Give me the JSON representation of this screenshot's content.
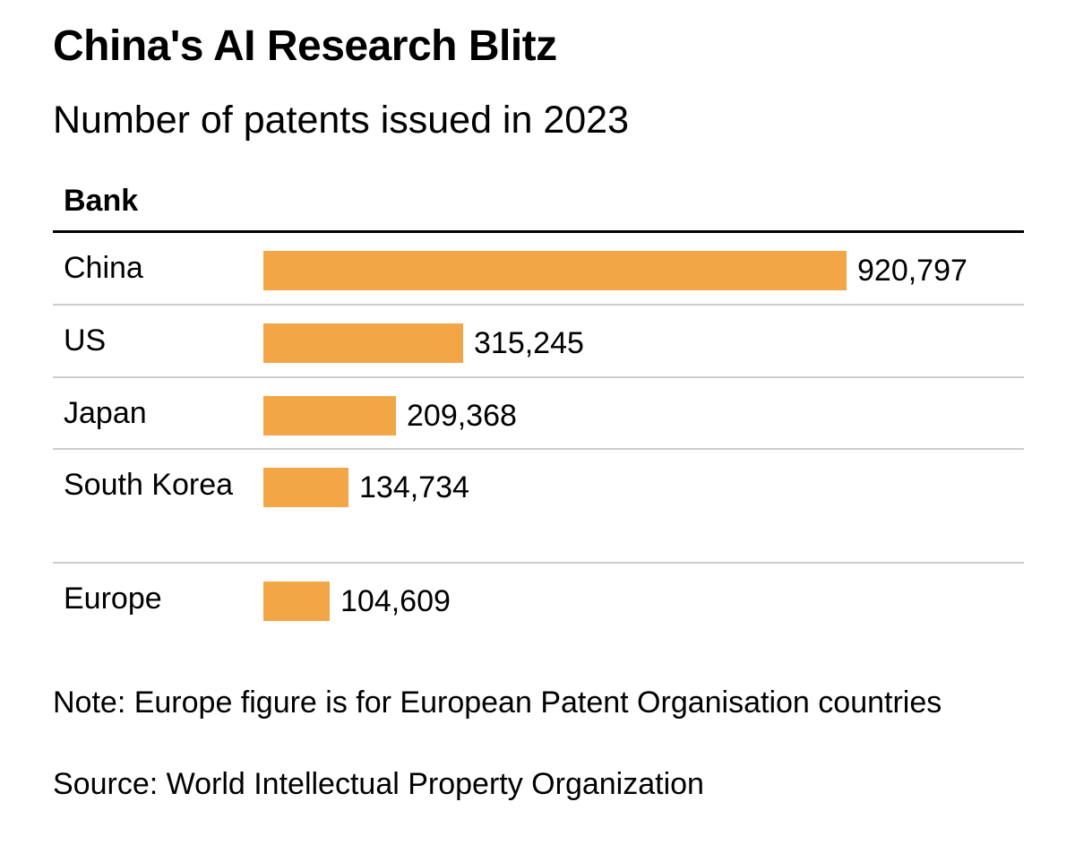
{
  "chart_data": {
    "type": "bar",
    "orientation": "horizontal",
    "title": "China's AI Research Blitz",
    "subtitle": "Number of patents issued in 2023",
    "column_header": "Bank",
    "categories": [
      "China",
      "US",
      "Japan",
      "South Korea",
      "Europe"
    ],
    "values": [
      920797,
      315245,
      209368,
      134734,
      104609
    ],
    "value_labels": [
      "920,797",
      "315,245",
      "209,368",
      "134,734",
      "104,609"
    ],
    "xlim": [
      0,
      920797
    ],
    "grid": false,
    "legend": "none",
    "bar_color": "#f2a646",
    "note": "Note: Europe figure is for European Patent Organisation countries",
    "source": "Source: World Intellectual Property Organization"
  }
}
